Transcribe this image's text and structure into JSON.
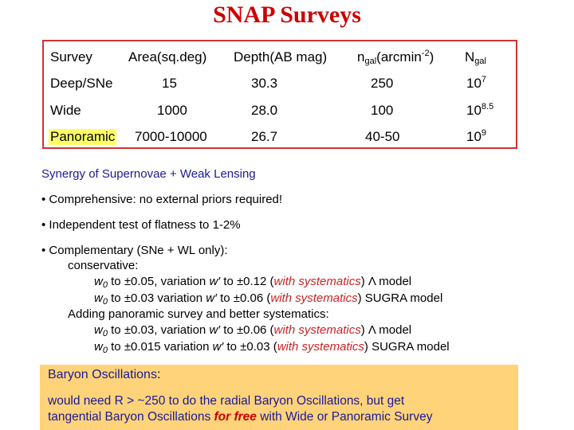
{
  "title": "SNAP Surveys",
  "table": {
    "headers": {
      "survey": "Survey",
      "area": "Area(sq.deg)",
      "depth": "Depth(AB mag)",
      "ngal_base": "n",
      "ngal_sub": "gal",
      "ngal_unit_pre": "(arcmin",
      "ngal_unit_sup": "-2",
      "ngal_unit_post": ")",
      "Ngal_base": "N",
      "Ngal_sub": "gal"
    },
    "rows": [
      {
        "survey": "Deep/SNe",
        "area": "15",
        "depth": "30.3",
        "ngal": "250",
        "Ngal_base": "10",
        "Ngal_exp": "7"
      },
      {
        "survey": "Wide",
        "area": "1000",
        "depth": "28.0",
        "ngal": "100",
        "Ngal_base": "10",
        "Ngal_exp": "8.5"
      },
      {
        "survey": "Panoramic",
        "area": "7000-10000",
        "depth": "26.7",
        "ngal": "40-50",
        "Ngal_base": "10",
        "Ngal_exp": "9"
      }
    ]
  },
  "synergy": {
    "heading": "Synergy of Supernovae + Weak Lensing",
    "bullet1": "• Comprehensive: no external priors required!",
    "bullet2": "• Independent test of flatness to 1-2%",
    "bullet3": "• Complementary (SNe + WL only):",
    "conservative": "conservative:",
    "l1_a": "w",
    "l1_b": "0",
    "l1_c": " to ±0.05, variation ",
    "l1_d": "w′",
    "l1_e": " to ±0.12 (",
    "l1_f": "with systematics",
    "l1_g": ") Λ model",
    "l2_a": "w",
    "l2_b": "0",
    "l2_c": " to ±0.03 variation ",
    "l2_d": "w′",
    "l2_e": " to ±0.06 (",
    "l2_f": "with systematics",
    "l2_g": ") SUGRA model",
    "adding": "Adding panoramic survey and better systematics:",
    "l3_a": "w",
    "l3_b": "0",
    "l3_c": " to ±0.03, variation ",
    "l3_d": "w′",
    "l3_e": " to ±0.06 (",
    "l3_f": "with systematics",
    "l3_g": ") Λ model",
    "l4_a": "w",
    "l4_b": "0",
    "l4_c": " to ±0.015 variation ",
    "l4_d": "w′",
    "l4_e": " to ±0.03 (",
    "l4_f": "with systematics",
    "l4_g": ") SUGRA model"
  },
  "baryon": {
    "title": "Baryon Oscillations",
    "title_colon": ":",
    "line1": "would need R > ~250 to do the radial Baryon Oscillations, but get",
    "line2_a": "tangential Baryon Oscillations ",
    "line2_b": "for free",
    "line2_c": " with Wide or Panoramic Survey"
  },
  "colors": {
    "title": "#cc0000",
    "table_border": "#cc3333",
    "highlight": "#ffff66",
    "blue_text": "#1a1a99",
    "red_italic": "#cc2222",
    "baryon_bg": "#ffd37a"
  }
}
